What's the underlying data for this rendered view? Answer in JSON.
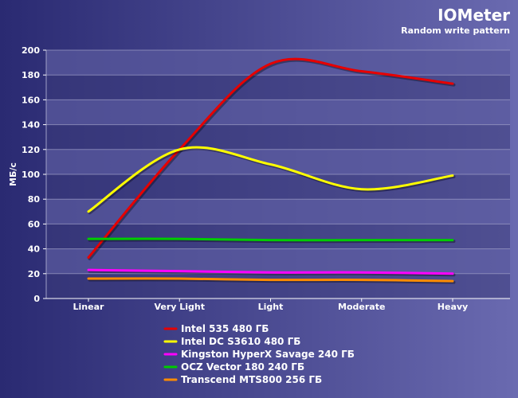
{
  "header": {
    "title": "IOMeter",
    "subtitle": "Random write pattern"
  },
  "colors": {
    "bg_left": "#2a2a72",
    "bg_right": "#6a6ab0",
    "plot_band_dark": "#3b3b7a",
    "plot_band_light": "#5a5a9e",
    "grid": "#a0a0c8",
    "text": "#ffffff"
  },
  "chart_data": {
    "type": "line",
    "title": "IOMeter",
    "subtitle": "Random write pattern",
    "xlabel": "",
    "ylabel": "МБ/с",
    "categories": [
      "Linear",
      "Very Light",
      "Light",
      "Moderate",
      "Heavy"
    ],
    "ylim": [
      0,
      200
    ],
    "yticks": [
      0,
      20,
      40,
      60,
      80,
      100,
      120,
      140,
      160,
      180,
      200
    ],
    "grid": true,
    "legend_position": "bottom",
    "smooth": true,
    "series": [
      {
        "name": "Intel 535 480 ГБ",
        "color": "#e60000",
        "values": [
          33,
          120,
          189,
          183,
          173
        ]
      },
      {
        "name": "Intel DC S3610 480 ГБ",
        "color": "#ffff00",
        "values": [
          70,
          120,
          108,
          88,
          99
        ]
      },
      {
        "name": "Kingston HyperX Savage 240 ГБ",
        "color": "#ff00ff",
        "values": [
          23,
          22,
          21,
          21,
          20
        ]
      },
      {
        "name": "OCZ Vector 180 240 ГБ",
        "color": "#00cc00",
        "values": [
          48,
          48,
          47,
          47,
          47
        ]
      },
      {
        "name": "Transcend MTS800 256 ГБ",
        "color": "#ff8c00",
        "values": [
          16,
          16,
          15,
          15,
          14
        ]
      }
    ]
  }
}
